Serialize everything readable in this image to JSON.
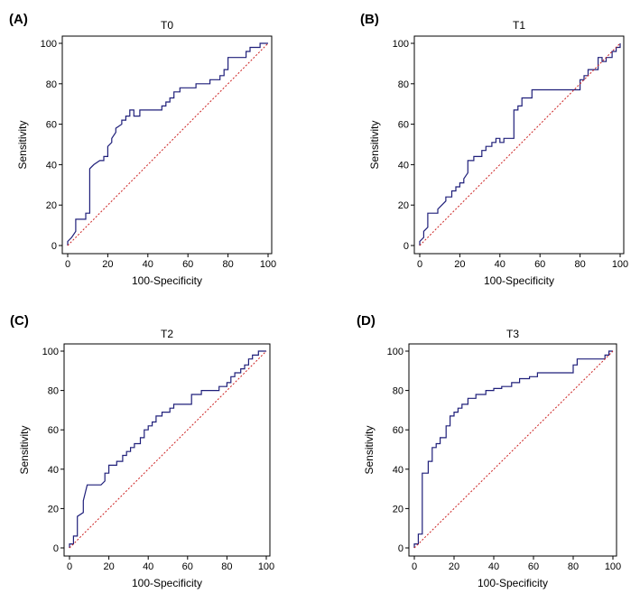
{
  "chart_data": [
    {
      "type": "line",
      "panel_label": "(A)",
      "title": "T0",
      "xlabel": "100-Specificity",
      "ylabel": "Sensitivity",
      "xlim": [
        0,
        100
      ],
      "ylim": [
        0,
        100
      ],
      "xticks": [
        0,
        20,
        40,
        60,
        80,
        100
      ],
      "yticks": [
        0,
        20,
        40,
        60,
        80,
        100
      ],
      "grid": false,
      "series": [
        {
          "role": "roc",
          "color": "#1f1f7a",
          "x": [
            0,
            0,
            2,
            4,
            4,
            9,
            9,
            11,
            11,
            13,
            16,
            18,
            18,
            20,
            20,
            22,
            22,
            24,
            24,
            27,
            27,
            29,
            29,
            31,
            31,
            33,
            33,
            36,
            36,
            47,
            47,
            49,
            49,
            51,
            51,
            53,
            53,
            56,
            56,
            64,
            64,
            71,
            71,
            76,
            76,
            78,
            78,
            80,
            80,
            89,
            89,
            91,
            91,
            96,
            96,
            100,
            100
          ],
          "y": [
            0,
            2,
            4,
            7,
            13,
            13,
            16,
            16,
            38,
            40,
            42,
            42,
            44,
            44,
            49,
            51,
            53,
            56,
            58,
            60,
            62,
            62,
            64,
            64,
            67,
            67,
            64,
            64,
            67,
            67,
            69,
            69,
            71,
            71,
            73,
            73,
            76,
            76,
            78,
            78,
            80,
            80,
            82,
            82,
            84,
            84,
            87,
            87,
            93,
            93,
            96,
            96,
            98,
            98,
            100,
            100,
            100
          ]
        },
        {
          "role": "reference",
          "color": "#cc2222",
          "x": [
            0,
            100
          ],
          "y": [
            0,
            100
          ]
        }
      ]
    },
    {
      "type": "line",
      "panel_label": "(B)",
      "title": "T1",
      "xlabel": "100-Specificity",
      "ylabel": "Sensitivity",
      "xlim": [
        0,
        100
      ],
      "ylim": [
        0,
        100
      ],
      "xticks": [
        0,
        20,
        40,
        60,
        80,
        100
      ],
      "yticks": [
        0,
        20,
        40,
        60,
        80,
        100
      ],
      "grid": false,
      "series": [
        {
          "role": "roc",
          "color": "#1f1f7a",
          "x": [
            0,
            0,
            2,
            2,
            4,
            4,
            9,
            9,
            13,
            13,
            16,
            16,
            18,
            18,
            20,
            20,
            22,
            22,
            24,
            24,
            27,
            27,
            31,
            31,
            33,
            33,
            36,
            36,
            38,
            38,
            40,
            40,
            42,
            42,
            47,
            47,
            49,
            49,
            51,
            51,
            56,
            56,
            80,
            80,
            82,
            82,
            84,
            84,
            89,
            89,
            91,
            91,
            93,
            93,
            96,
            96,
            98,
            98,
            100,
            100
          ],
          "y": [
            0,
            2,
            4,
            7,
            9,
            16,
            16,
            18,
            22,
            24,
            24,
            27,
            27,
            29,
            29,
            31,
            31,
            33,
            36,
            42,
            42,
            44,
            44,
            47,
            47,
            49,
            49,
            51,
            51,
            53,
            53,
            51,
            51,
            53,
            53,
            67,
            67,
            69,
            69,
            73,
            73,
            77,
            77,
            82,
            82,
            84,
            84,
            87,
            87,
            93,
            93,
            91,
            91,
            93,
            93,
            96,
            96,
            98,
            98,
            100
          ]
        },
        {
          "role": "reference",
          "color": "#cc2222",
          "x": [
            0,
            100
          ],
          "y": [
            0,
            100
          ]
        }
      ]
    },
    {
      "type": "line",
      "panel_label": "(C)",
      "title": "T2",
      "xlabel": "100-Specificity",
      "ylabel": "Sensitivity",
      "xlim": [
        0,
        100
      ],
      "ylim": [
        0,
        100
      ],
      "xticks": [
        0,
        20,
        40,
        60,
        80,
        100
      ],
      "yticks": [
        0,
        20,
        40,
        60,
        80,
        100
      ],
      "grid": false,
      "series": [
        {
          "role": "roc",
          "color": "#1f1f7a",
          "x": [
            0,
            0,
            2,
            2,
            4,
            4,
            7,
            7,
            9,
            16,
            18,
            18,
            20,
            20,
            24,
            24,
            27,
            27,
            29,
            29,
            31,
            31,
            33,
            33,
            36,
            36,
            38,
            38,
            40,
            40,
            42,
            42,
            44,
            44,
            47,
            47,
            51,
            51,
            53,
            53,
            62,
            62,
            67,
            67,
            76,
            76,
            80,
            80,
            82,
            82,
            84,
            84,
            87,
            87,
            89,
            89,
            91,
            91,
            93,
            93,
            96,
            96,
            100,
            100
          ],
          "y": [
            0,
            2,
            2,
            6,
            6,
            16,
            18,
            24,
            32,
            32,
            34,
            38,
            38,
            42,
            42,
            44,
            44,
            47,
            47,
            49,
            49,
            51,
            51,
            53,
            53,
            56,
            56,
            60,
            60,
            62,
            62,
            64,
            64,
            67,
            67,
            69,
            69,
            71,
            71,
            73,
            73,
            78,
            78,
            80,
            80,
            82,
            82,
            84,
            84,
            87,
            87,
            89,
            89,
            91,
            91,
            93,
            93,
            96,
            96,
            98,
            98,
            100,
            100,
            100
          ]
        },
        {
          "role": "reference",
          "color": "#cc2222",
          "x": [
            0,
            100
          ],
          "y": [
            0,
            100
          ]
        }
      ]
    },
    {
      "type": "line",
      "panel_label": "(D)",
      "title": "T3",
      "xlabel": "100-Specificity",
      "ylabel": "Sensitivity",
      "xlim": [
        0,
        100
      ],
      "ylim": [
        0,
        100
      ],
      "xticks": [
        0,
        20,
        40,
        60,
        80,
        100
      ],
      "yticks": [
        0,
        20,
        40,
        60,
        80,
        100
      ],
      "grid": false,
      "series": [
        {
          "role": "roc",
          "color": "#1f1f7a",
          "x": [
            0,
            0,
            2,
            2,
            4,
            4,
            7,
            7,
            9,
            9,
            11,
            11,
            13,
            13,
            16,
            16,
            18,
            18,
            20,
            20,
            22,
            22,
            24,
            24,
            27,
            27,
            31,
            31,
            36,
            36,
            40,
            40,
            44,
            44,
            49,
            49,
            53,
            53,
            58,
            58,
            62,
            62,
            80,
            80,
            82,
            82,
            96,
            96,
            98,
            98,
            100
          ],
          "y": [
            0,
            2,
            2,
            7,
            7,
            38,
            38,
            44,
            44,
            51,
            51,
            53,
            53,
            56,
            56,
            62,
            62,
            67,
            67,
            69,
            69,
            71,
            71,
            73,
            73,
            76,
            76,
            78,
            78,
            80,
            80,
            81,
            81,
            82,
            82,
            84,
            84,
            86,
            86,
            87,
            87,
            89,
            89,
            93,
            93,
            96,
            96,
            98,
            98,
            100,
            100
          ]
        },
        {
          "role": "reference",
          "color": "#cc2222",
          "x": [
            0,
            100
          ],
          "y": [
            0,
            100
          ]
        }
      ]
    }
  ]
}
